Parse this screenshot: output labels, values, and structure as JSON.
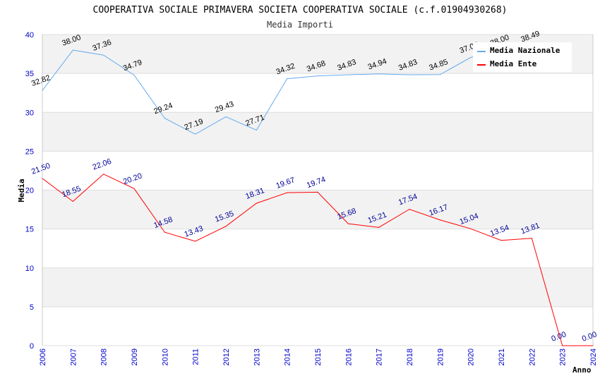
{
  "chart_data": {
    "type": "line",
    "title": "COOPERATIVA SOCIALE PRIMAVERA SOCIETA COOPERATIVA SOCIALE (c.f.01904930268)",
    "subtitle": "Media Importi",
    "xlabel": "Anno",
    "ylabel": "Media",
    "ylim": [
      0,
      40
    ],
    "yticks": [
      "0",
      "5",
      "10",
      "15",
      "20",
      "25",
      "30",
      "35",
      "40"
    ],
    "x": [
      "2006",
      "2007",
      "2008",
      "2009",
      "2010",
      "2011",
      "2012",
      "2013",
      "2014",
      "2015",
      "2016",
      "2017",
      "2018",
      "2019",
      "2020",
      "2021",
      "2022",
      "2023",
      "2024"
    ],
    "legend_position": "top-right",
    "series": [
      {
        "name": "Media Nazionale",
        "color": "#66aaee",
        "label_color": "#000000",
        "values": [
          32.82,
          38.0,
          37.36,
          34.79,
          29.24,
          27.19,
          29.43,
          27.71,
          34.32,
          34.68,
          34.83,
          34.94,
          34.83,
          34.85,
          37.05,
          38.0,
          38.49,
          null,
          null
        ],
        "labels": [
          "32.82",
          "38.00",
          "37.36",
          "34.79",
          "29.24",
          "27.19",
          "29.43",
          "27.71",
          "34.32",
          "34.68",
          "34.83",
          "34.94",
          "34.83",
          "34.85",
          "37.05",
          "38.00",
          "38.49",
          null,
          null
        ]
      },
      {
        "name": "Media Ente",
        "color": "#ff0000",
        "label_color": "#000099",
        "values": [
          21.5,
          18.55,
          22.06,
          20.2,
          14.58,
          13.43,
          15.35,
          18.31,
          19.67,
          19.74,
          15.68,
          15.21,
          17.54,
          16.17,
          15.04,
          13.54,
          13.81,
          0.0,
          0.0
        ],
        "labels": [
          "21.50",
          "18.55",
          "22.06",
          "20.20",
          "14.58",
          "13.43",
          "15.35",
          "18.31",
          "19.67",
          "19.74",
          "15.68",
          "15.21",
          "17.54",
          "16.17",
          "15.04",
          "13.54",
          "13.81",
          "0.00",
          "0.00"
        ]
      }
    ]
  }
}
